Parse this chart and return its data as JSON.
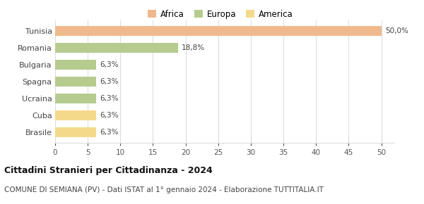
{
  "categories": [
    "Tunisia",
    "Romania",
    "Bulgaria",
    "Spagna",
    "Ucraina",
    "Cuba",
    "Brasile"
  ],
  "values": [
    50.0,
    18.8,
    6.3,
    6.3,
    6.3,
    6.3,
    6.3
  ],
  "labels": [
    "50,0%",
    "18,8%",
    "6,3%",
    "6,3%",
    "6,3%",
    "6,3%",
    "6,3%"
  ],
  "colors": [
    "#f0b98d",
    "#b5cc8e",
    "#b5cc8e",
    "#b5cc8e",
    "#b5cc8e",
    "#f5d98b",
    "#f5d98b"
  ],
  "legend": [
    {
      "label": "Africa",
      "color": "#f0b98d"
    },
    {
      "label": "Europa",
      "color": "#b5cc8e"
    },
    {
      "label": "America",
      "color": "#f5d98b"
    }
  ],
  "xlim": [
    0,
    52
  ],
  "xticks": [
    0,
    5,
    10,
    15,
    20,
    25,
    30,
    35,
    40,
    45,
    50
  ],
  "title": "Cittadini Stranieri per Cittadinanza - 2024",
  "subtitle": "COMUNE DI SEMIANA (PV) - Dati ISTAT al 1° gennaio 2024 - Elaborazione TUTTITALIA.IT",
  "title_fontsize": 9,
  "subtitle_fontsize": 7.5,
  "background_color": "#ffffff",
  "grid_color": "#dddddd"
}
